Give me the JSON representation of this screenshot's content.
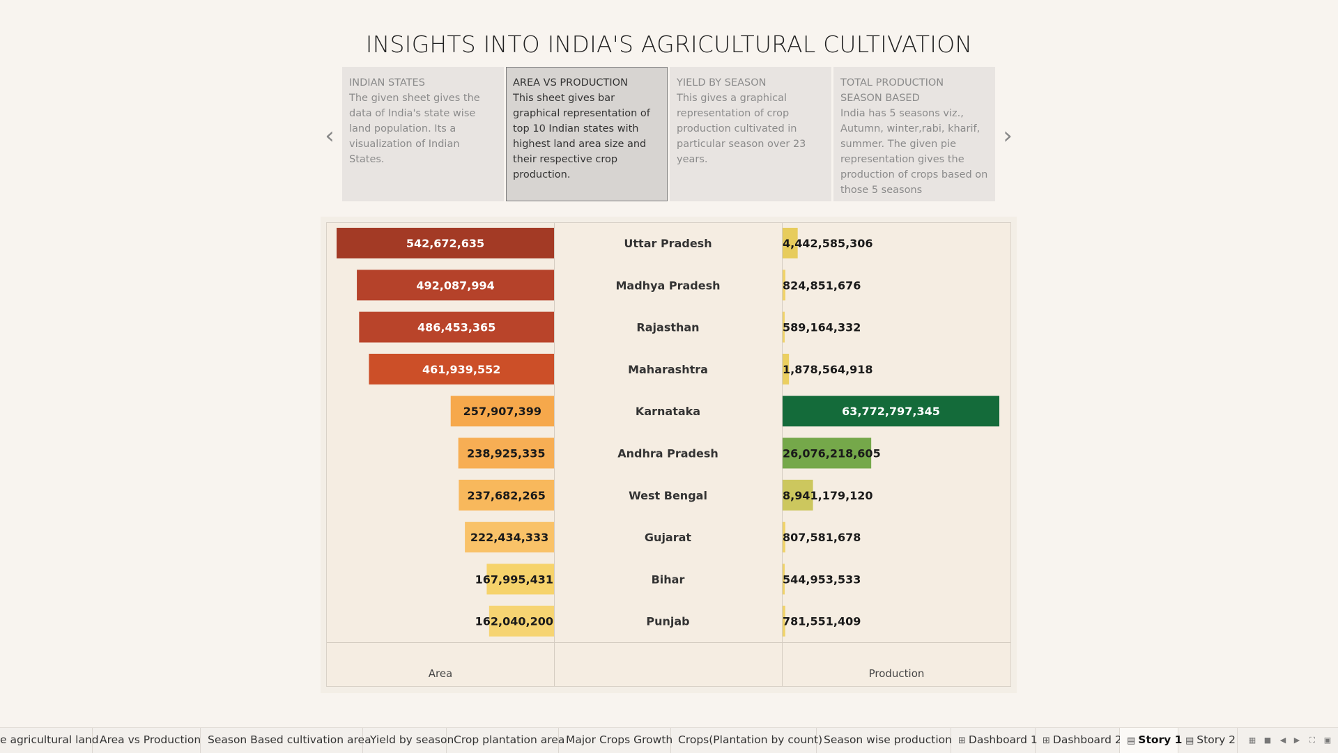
{
  "title": "INSIGHTS INTO INDIA'S AGRICULTURAL CULTIVATION",
  "navigation": {
    "prev_icon": "chevron-left",
    "next_icon": "chevron-right"
  },
  "story_points": [
    {
      "title": "INDIAN STATES",
      "text": "The given sheet gives the data of India's state wise land population. Its a visualization of Indian States.",
      "active": false
    },
    {
      "title": "AREA VS PRODUCTION",
      "text": "This sheet gives bar graphical representation of top 10 Indian states with highest land area size and their respective crop production.",
      "active": true
    },
    {
      "title": "YIELD BY SEASON",
      "text": "This gives a graphical representation of crop production cultivated in particular season over 23 years.",
      "active": false
    },
    {
      "title": "TOTAL PRODUCTION SEASON BASED",
      "text": "India has 5 seasons viz., Autumn, winter,rabi, kharif, summer. The given pie representation gives the production of crops based on those 5 seasons",
      "active": false
    }
  ],
  "chart_data": {
    "type": "bar",
    "categories": [
      "Uttar Pradesh",
      "Madhya Pradesh",
      "Rajasthan",
      "Maharashtra",
      "Karnataka",
      "Andhra Pradesh",
      "West Bengal",
      "Gujarat",
      "Bihar",
      "Punjab"
    ],
    "series": [
      {
        "name": "Area",
        "values": [
          542672635,
          492087994,
          486453365,
          461939552,
          257907399,
          238925335,
          237682265,
          222434333,
          167995431,
          162040200
        ],
        "labels": [
          "542,672,635",
          "492,087,994",
          "486,453,365",
          "461,939,552",
          "257,907,399",
          "238,925,335",
          "237,682,265",
          "222,434,333",
          "167,995,431",
          "162,040,200"
        ],
        "colors": [
          "#a33a25",
          "#b5422a",
          "#b9442a",
          "#cc4f28",
          "#f6a84b",
          "#f7ae54",
          "#f8b85c",
          "#f9c268",
          "#f6d36b",
          "#f6d472"
        ]
      },
      {
        "name": "Production",
        "values": [
          4442585306,
          824851676,
          589164332,
          1878564918,
          63772797345,
          26076218605,
          8941179120,
          807581678,
          544953533,
          781551409
        ],
        "labels": [
          "4,442,585,306",
          "824,851,676",
          "589,164,332",
          "1,878,564,918",
          "63,772,797,345",
          "26,076,218,605",
          "8,941,179,120",
          "807,581,678",
          "544,953,533",
          "781,551,409"
        ],
        "colors": [
          "#e7cc5c",
          "#f0d36a",
          "#f0d36a",
          "#ebcf60",
          "#146b3a",
          "#75a84a",
          "#ccc75e",
          "#f0d36a",
          "#f0d36a",
          "#f0d36a"
        ]
      }
    ],
    "xlabel_left": "Area",
    "xlabel_right": "Production",
    "grid": false
  },
  "tabs": [
    {
      "label": "e agricultural land",
      "icon": "",
      "active": false
    },
    {
      "label": "Area vs Production",
      "icon": "",
      "active": false
    },
    {
      "label": "Season Based cultivation area",
      "icon": "",
      "active": false
    },
    {
      "label": "Yield by season",
      "icon": "",
      "active": false
    },
    {
      "label": "Crop plantation area",
      "icon": "",
      "active": false
    },
    {
      "label": "Major Crops Growth",
      "icon": "",
      "active": false
    },
    {
      "label": "Crops(Plantation by count)",
      "icon": "",
      "active": false
    },
    {
      "label": "Season wise production",
      "icon": "",
      "active": false
    },
    {
      "label": "Dashboard 1",
      "icon": "dashboard-icon",
      "active": false
    },
    {
      "label": "Dashboard 2",
      "icon": "dashboard-icon",
      "active": false
    },
    {
      "label": "Story 1",
      "icon": "story-icon",
      "active": true
    },
    {
      "label": "Story 2",
      "icon": "story-icon",
      "active": false
    }
  ],
  "controls": [
    {
      "name": "sheet-sorter-icon"
    },
    {
      "name": "filmstrip-icon"
    },
    {
      "name": "prev-sheet-icon"
    },
    {
      "name": "next-sheet-icon"
    },
    {
      "name": "fullscreen-icon"
    },
    {
      "name": "presentation-icon"
    }
  ]
}
